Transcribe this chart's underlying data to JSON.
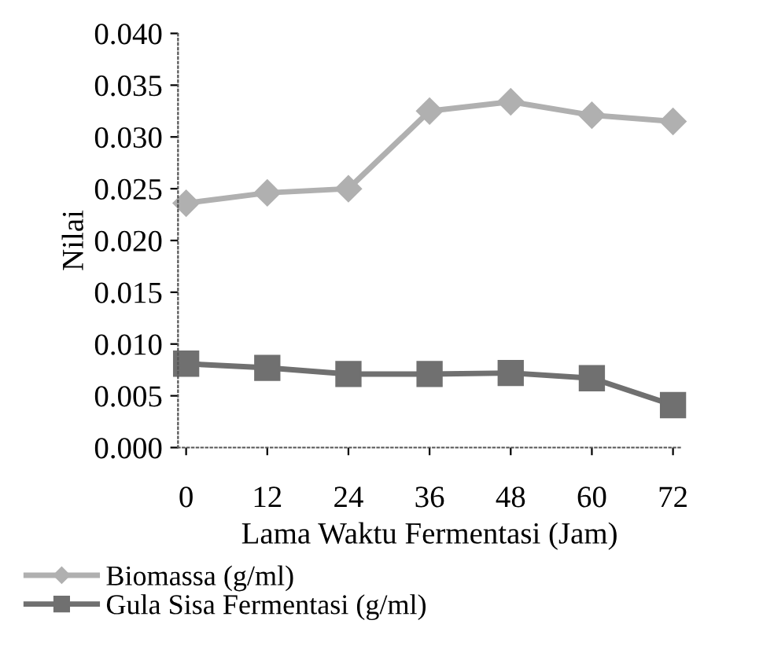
{
  "chart_data": {
    "type": "line",
    "xlabel": "Lama Waktu Fermentasi (Jam)",
    "ylabel": "Nilai",
    "categories": [
      "0",
      "12",
      "24",
      "36",
      "48",
      "60",
      "72"
    ],
    "series": [
      {
        "name": "Biomassa (g/ml)",
        "color": "#b0b0b0",
        "marker": "diamond",
        "values": [
          0.0236,
          0.0246,
          0.025,
          0.0325,
          0.0334,
          0.0321,
          0.0315
        ]
      },
      {
        "name": "Gula Sisa Fermentasi (g/ml)",
        "color": "#707070",
        "marker": "square",
        "values": [
          0.0081,
          0.0077,
          0.0071,
          0.0071,
          0.0072,
          0.0067,
          0.0041
        ]
      }
    ],
    "ylim": [
      0,
      0.04
    ],
    "yticks": [
      {
        "value": 0,
        "label": "0.000"
      },
      {
        "value": 0.005,
        "label": "0.005"
      },
      {
        "value": 0.01,
        "label": "0.010"
      },
      {
        "value": 0.015,
        "label": "0.015"
      },
      {
        "value": 0.02,
        "label": "0.020"
      },
      {
        "value": 0.025,
        "label": "0.025"
      },
      {
        "value": 0.03,
        "label": "0.030"
      },
      {
        "value": 0.035,
        "label": "0.035"
      },
      {
        "value": 0.04,
        "label": "0.040"
      }
    ],
    "grid": false,
    "legend": "bottom left",
    "line_style": "solid"
  }
}
